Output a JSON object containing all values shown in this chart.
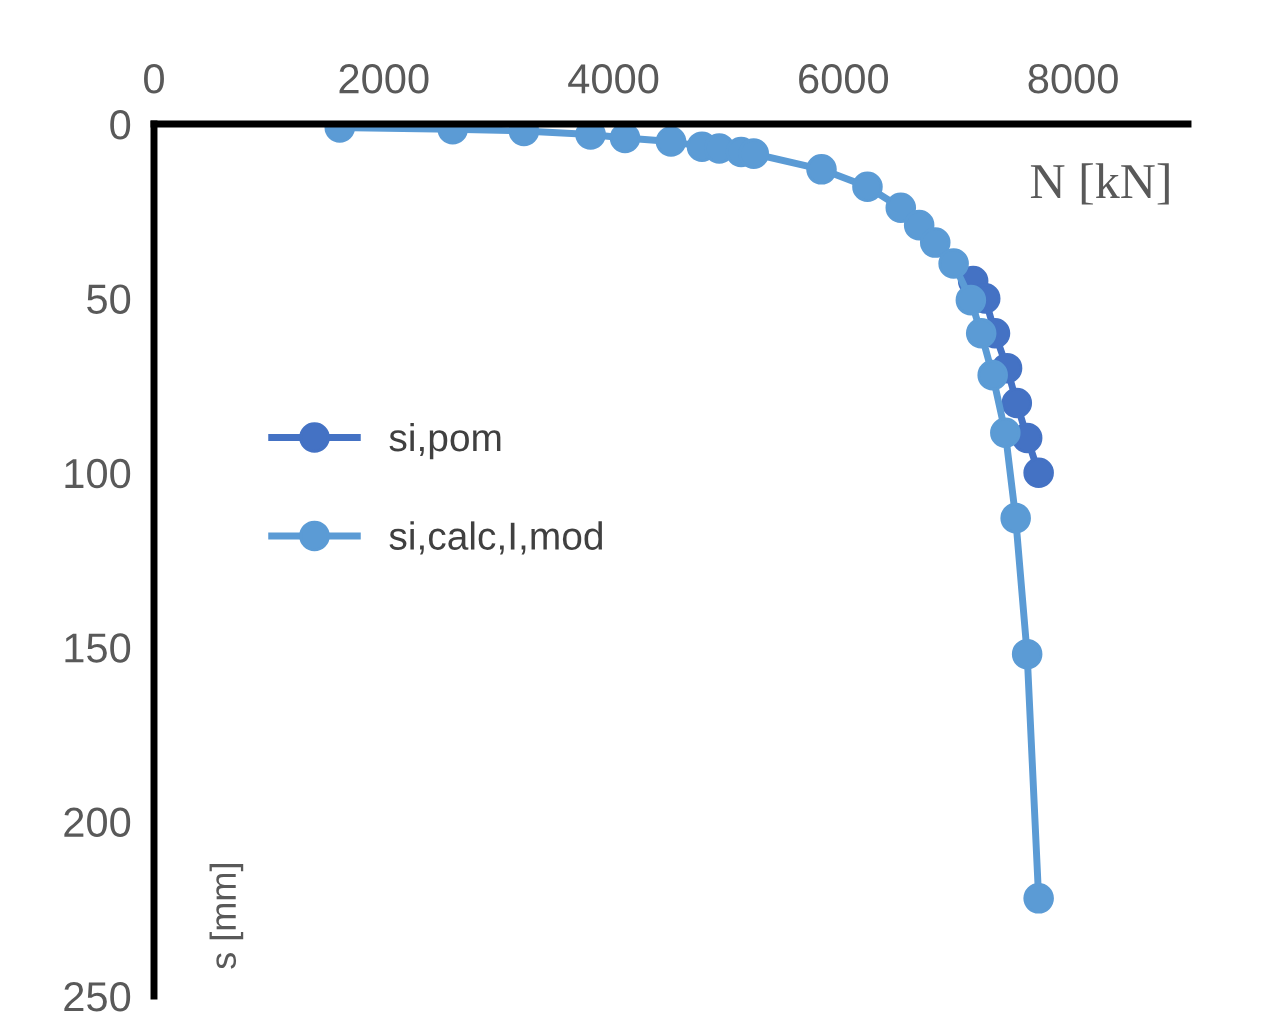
{
  "chart_data": {
    "type": "line",
    "xlabel": "N [kN]",
    "ylabel": "s [mm]",
    "xlim": [
      0,
      9000
    ],
    "xticks": [
      0,
      2000,
      4000,
      6000,
      8000
    ],
    "ylim": [
      250,
      0
    ],
    "yticks": [
      0,
      50,
      100,
      150,
      200,
      250
    ],
    "grid": false,
    "legend": "left",
    "marker": "circle",
    "line_style": "solid",
    "series": [
      {
        "name": "si,pom",
        "color": "#4472c4",
        "x": [
          7130,
          7235,
          7320,
          7425,
          7510,
          7600,
          7700
        ],
        "values": [
          45,
          50,
          60,
          70,
          80,
          90,
          100
        ]
      },
      {
        "name": "si,calc,I,mod",
        "color": "#5b9bd5",
        "x": [
          1617,
          2600,
          3220,
          3800,
          4100,
          4500,
          4770,
          4920,
          5110,
          5220,
          5810,
          6210,
          6500,
          6660,
          6800,
          6960,
          7110,
          7200,
          7300,
          7410,
          7500,
          7600,
          7700
        ],
        "values": [
          1,
          1.5,
          2,
          3,
          4,
          5,
          6.5,
          7,
          8,
          8.5,
          13,
          18,
          24,
          29,
          34,
          40,
          50.5,
          60,
          72,
          88.5,
          113,
          152,
          222
        ]
      }
    ]
  }
}
